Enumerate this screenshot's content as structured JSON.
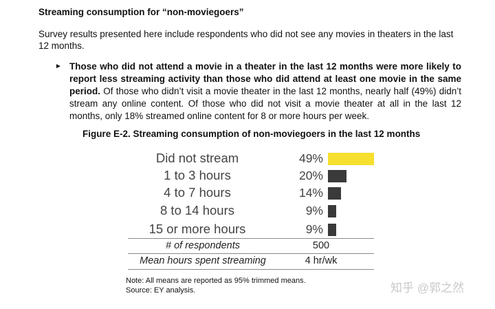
{
  "heading": "Streaming consumption for “non-moviegoers”",
  "intro": "Survey results presented here include respondents who did not see any movies in theaters in the last 12 months.",
  "bullet": {
    "marker": "►",
    "bold": "Those who did not attend a movie in a theater in the last 12 months were more likely to report less streaming activity than those who did attend at least one movie in the same period.",
    "text": " Of those who didn’t visit a movie theater in the last 12 months, nearly half (49%) didn’t stream any online content. Of those who did not visit a movie theater at all in the last 12 months, only 18% streamed online content for 8 or more hours per week."
  },
  "figure_caption": "Figure E-2. Streaming consumption of non-moviegoers in the last 12 months",
  "chart_data": {
    "type": "bar",
    "orientation": "horizontal",
    "categories": [
      "Did not stream",
      "1 to 3 hours",
      "4 to 7 hours",
      "8 to 14 hours",
      "15 or more hours"
    ],
    "values": [
      49,
      20,
      14,
      9,
      9
    ],
    "value_labels": [
      "49%",
      "20%",
      "14%",
      "9%",
      "9%"
    ],
    "colors": [
      "#f6df2e",
      "#3a3a3a",
      "#3a3a3a",
      "#3a3a3a",
      "#3a3a3a"
    ],
    "xlim": [
      0,
      49
    ],
    "grid": false
  },
  "stats": [
    {
      "label": "# of respondents",
      "value": "500"
    },
    {
      "label": "Mean hours spent streaming",
      "value": "4 hr/wk"
    }
  ],
  "notes": [
    "Note: All means are reported as 95% trimmed means.",
    "Source: EY analysis."
  ],
  "watermark": "知乎 @郭之然"
}
